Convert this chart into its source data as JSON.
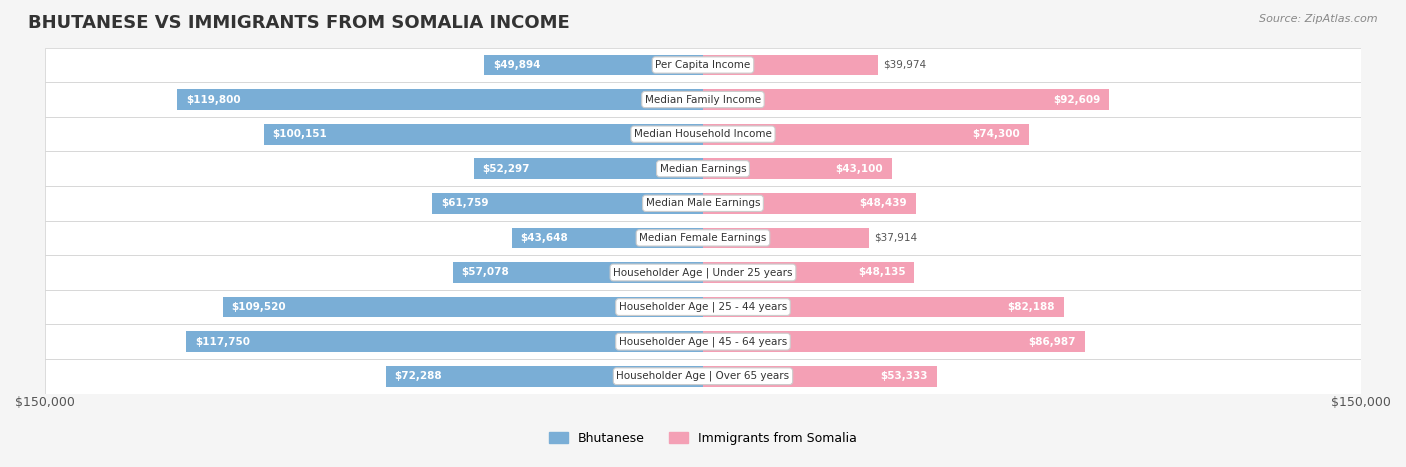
{
  "title": "BHUTANESE VS IMMIGRANTS FROM SOMALIA INCOME",
  "source": "Source: ZipAtlas.com",
  "categories": [
    "Per Capita Income",
    "Median Family Income",
    "Median Household Income",
    "Median Earnings",
    "Median Male Earnings",
    "Median Female Earnings",
    "Householder Age | Under 25 years",
    "Householder Age | 25 - 44 years",
    "Householder Age | 45 - 64 years",
    "Householder Age | Over 65 years"
  ],
  "bhutanese": [
    49894,
    119800,
    100151,
    52297,
    61759,
    43648,
    57078,
    109520,
    117750,
    72288
  ],
  "somalia": [
    39974,
    92609,
    74300,
    43100,
    48439,
    37914,
    48135,
    82188,
    86987,
    53333
  ],
  "bhutanese_labels": [
    "$49,894",
    "$119,800",
    "$100,151",
    "$52,297",
    "$61,759",
    "$43,648",
    "$57,078",
    "$109,520",
    "$117,750",
    "$72,288"
  ],
  "somalia_labels": [
    "$39,974",
    "$92,609",
    "$74,300",
    "$43,100",
    "$48,439",
    "$37,914",
    "$48,135",
    "$82,188",
    "$86,987",
    "$53,333"
  ],
  "max_val": 150000,
  "blue_color": "#7aaed6",
  "blue_dark": "#5b9bd5",
  "pink_color": "#f4a0b5",
  "pink_dark": "#f06090",
  "bg_color": "#f5f5f5",
  "row_bg": "#ffffff",
  "border_color": "#d0d0d0",
  "legend_blue": "#7aaed6",
  "legend_pink": "#f4a0b5"
}
